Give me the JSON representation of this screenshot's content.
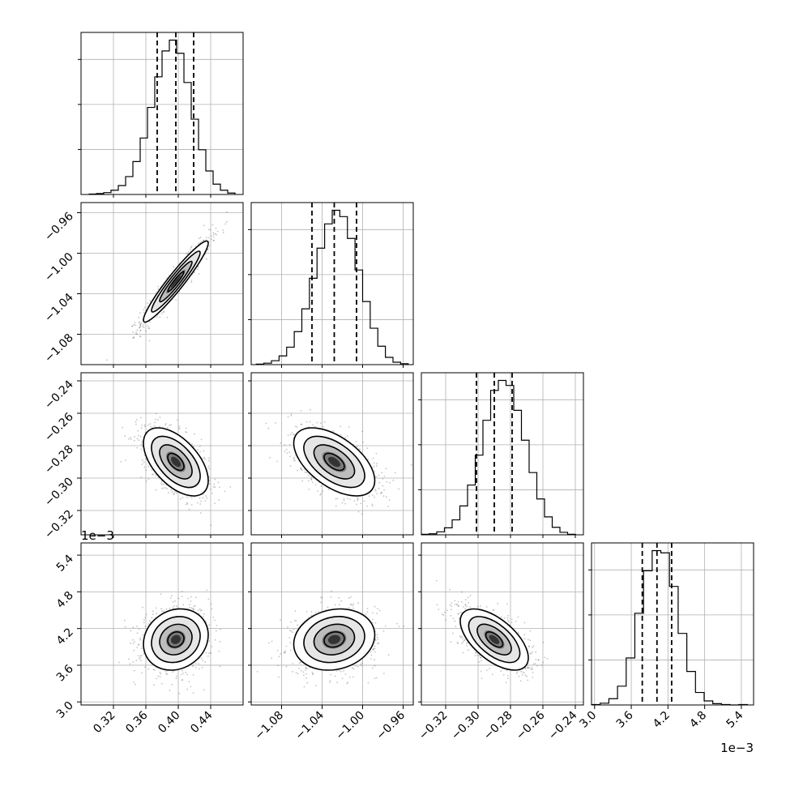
{
  "chart_data": {
    "type": "corner",
    "grid": true,
    "parameters": [
      {
        "ticks": [
          0.32,
          0.36,
          0.4,
          0.44
        ],
        "tick_labels": [
          "0.32",
          "0.36",
          "0.40",
          "0.44"
        ],
        "lim": [
          0.28,
          0.48
        ],
        "offset_text": ""
      },
      {
        "ticks": [
          -1.08,
          -1.04,
          -1.0,
          -0.96
        ],
        "tick_labels": [
          "−1.08",
          "−1.04",
          "−1.00",
          "−0.96"
        ],
        "lim": [
          -1.11,
          -0.95
        ],
        "offset_text": ""
      },
      {
        "ticks": [
          -0.32,
          -0.3,
          -0.28,
          -0.26,
          -0.24
        ],
        "tick_labels": [
          "−0.32",
          "−0.30",
          "−0.28",
          "−0.26",
          "−0.24"
        ],
        "lim": [
          -0.335,
          -0.235
        ],
        "offset_text": ""
      },
      {
        "ticks": [
          3.0,
          3.6,
          4.2,
          4.8,
          5.4
        ],
        "tick_labels": [
          "3.0",
          "3.6",
          "4.2",
          "4.8",
          "5.4"
        ],
        "lim": [
          2.95,
          5.6
        ],
        "offset_text": "1e−3"
      }
    ],
    "quantiles": [
      [
        0.374,
        0.397,
        0.419
      ],
      [
        -1.05,
        -1.028,
        -1.006
      ],
      [
        -0.301,
        -0.29,
        -0.279
      ],
      [
        3.78,
        4.02,
        4.26
      ]
    ],
    "histograms": [
      {
        "edges_lim": [
          0.29,
          0.47
        ],
        "counts": [
          1,
          2,
          4,
          9,
          19,
          38,
          70,
          120,
          185,
          250,
          305,
          328,
          300,
          238,
          160,
          95,
          50,
          22,
          9,
          3
        ]
      },
      {
        "edges_lim": [
          -1.105,
          -0.955
        ],
        "counts": [
          1,
          3,
          8,
          18,
          36,
          68,
          115,
          178,
          240,
          290,
          318,
          305,
          260,
          195,
          130,
          75,
          38,
          15,
          5,
          2
        ]
      },
      {
        "edges_lim": [
          -0.335,
          -0.24
        ],
        "counts": [
          1,
          2,
          6,
          14,
          30,
          58,
          100,
          160,
          230,
          290,
          310,
          300,
          250,
          190,
          125,
          72,
          36,
          15,
          5,
          1
        ]
      },
      {
        "edges_lim": [
          2.95,
          5.5
        ],
        "counts": [
          1,
          4,
          14,
          42,
          105,
          205,
          300,
          345,
          340,
          265,
          160,
          75,
          28,
          9,
          3,
          1,
          0,
          1
        ]
      }
    ],
    "correlations": [
      [
        1.0,
        0.95,
        -0.55,
        0.15
      ],
      [
        0.95,
        1.0,
        -0.55,
        0.15
      ],
      [
        -0.55,
        -0.55,
        1.0,
        -0.6
      ],
      [
        0.15,
        0.15,
        -0.6,
        1.0
      ]
    ],
    "marginal_sd": [
      0.02,
      0.02,
      0.0105,
      0.25
    ],
    "marginal_mean": [
      0.397,
      -1.028,
      -0.29,
      4.02
    ]
  }
}
